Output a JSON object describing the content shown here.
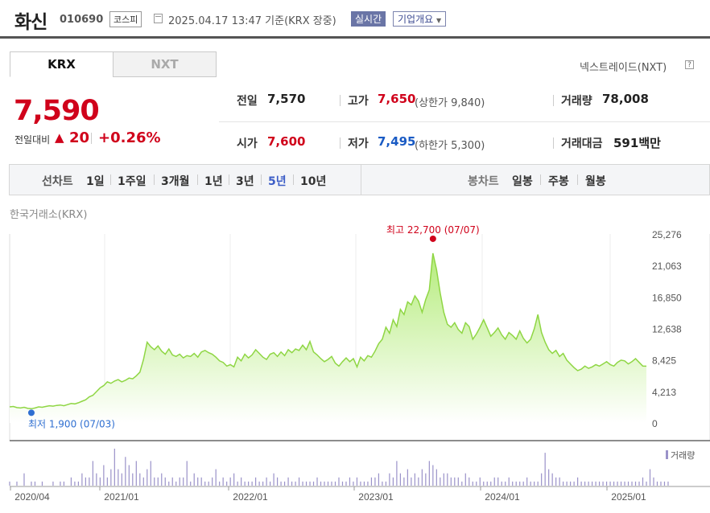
{
  "header": {
    "company": "화신",
    "code": "010690",
    "market": "코스피",
    "datetime": "2025.04.17 13:47 기준(KRX 장중)",
    "realtime_label": "실시간",
    "overview_label": "기업개요",
    "calendar_icon": "calendar-icon"
  },
  "tabs": [
    {
      "label": "KRX",
      "active": true
    },
    {
      "label": "NXT",
      "active": false
    }
  ],
  "nxt_link": "넥스트레이드(NXT)",
  "nxt_help": "?",
  "price": {
    "current": "7,590",
    "change_label": "전일대비",
    "change_arrow": "▲",
    "change_value": "20",
    "change_pct": "+0.26%"
  },
  "stats": {
    "prev_label": "전일",
    "prev": "7,570",
    "high_label": "고가",
    "high": "7,650",
    "upper_limit": "(상한가 9,840)",
    "volume_label": "거래량",
    "volume": "78,008",
    "open_label": "시가",
    "open": "7,600",
    "low_label": "저가",
    "low": "7,495",
    "lower_limit": "(하한가 5,300)",
    "amount_label": "거래대금",
    "amount": "591",
    "amount_unit": "백만"
  },
  "periods": {
    "line_label": "선차트",
    "line_items": [
      "1일",
      "1주일",
      "3개월",
      "1년",
      "3년",
      "5년",
      "10년"
    ],
    "line_active": "5년",
    "candle_label": "봉차트",
    "candle_items": [
      "일봉",
      "주봉",
      "월봉"
    ]
  },
  "chart_source": "한국거래소(KRX)",
  "chart_data": {
    "type": "area",
    "x_ticks": [
      "2020/04",
      "2021/01",
      "2022/01",
      "2023/01",
      "2024/01",
      "2025/01"
    ],
    "y_ticks": [
      25276,
      21063,
      16850,
      12638,
      8425,
      4213,
      0
    ],
    "ylim": [
      0,
      25276
    ],
    "max_label": "최고 22,700 (07/07)",
    "min_label": "최저 1,900 (07/03)",
    "volume_label": "거래량",
    "colors": {
      "line": "#8fd644",
      "fill_top": "#b5ec7c",
      "fill_bottom": "#ffffff",
      "max": "#d0021b",
      "min": "#2f6fd1",
      "volume": "#9a92c9"
    },
    "series": [
      {
        "values": [
          2150,
          2200,
          2050,
          2000,
          2100,
          1950,
          1900,
          2000,
          2150,
          2100,
          2200,
          2300,
          2250,
          2350,
          2400,
          2300,
          2450,
          2600,
          2550,
          2700,
          2900,
          3100,
          3500,
          3700,
          4200,
          4700,
          5000,
          5500,
          5300,
          5600,
          5800,
          5500,
          5700,
          6000,
          5900,
          6300,
          6800,
          8500,
          10800,
          10200,
          9800,
          10300,
          9600,
          9200,
          9900,
          9100,
          8900,
          9200,
          8700,
          9000,
          8900,
          9300,
          8800,
          9500,
          9700,
          9400,
          9200,
          8800,
          8300,
          8100,
          7600,
          7800,
          7500,
          8800,
          8300,
          9200,
          8700,
          9100,
          9800,
          9300,
          8800,
          8500,
          9200,
          9400,
          8900,
          9500,
          9000,
          9800,
          9400,
          9900,
          9700,
          10400,
          9800,
          10900,
          9500,
          9100,
          8600,
          8200,
          8500,
          8900,
          8000,
          7600,
          8200,
          8700,
          8200,
          8600,
          7500,
          8800,
          8300,
          9000,
          8800,
          9600,
          10600,
          11200,
          12800,
          12000,
          13800,
          12900,
          15200,
          14500,
          16200,
          15800,
          17000,
          16300,
          14800,
          16500,
          17800,
          22700,
          20500,
          17400,
          14800,
          13200,
          12800,
          13400,
          12500,
          12000,
          13400,
          12900,
          11200,
          11900,
          12800,
          13800,
          12700,
          11600,
          12100,
          12700,
          11800,
          11200,
          12100,
          11700,
          11200,
          12300,
          11300,
          10700,
          11200,
          12600,
          14500,
          12100,
          10800,
          9800,
          9300,
          9700,
          8900,
          9300,
          8400,
          7900,
          7400,
          7000,
          7200,
          7600,
          7300,
          7500,
          7800,
          7600,
          7900,
          8200,
          7800,
          7600,
          8100,
          8400,
          8300,
          7900,
          8200,
          8600,
          8100,
          7600,
          7590
        ]
      },
      {
        "name": "거래량",
        "values": [
          1,
          0,
          1,
          0,
          3,
          0,
          1,
          1,
          0,
          1,
          0,
          0,
          1,
          0,
          1,
          1,
          0,
          2,
          1,
          1,
          3,
          2,
          2,
          6,
          3,
          2,
          5,
          2,
          4,
          9,
          4,
          3,
          7,
          5,
          3,
          6,
          3,
          2,
          4,
          6,
          2,
          2,
          3,
          2,
          1,
          2,
          1,
          2,
          2,
          6,
          1,
          3,
          2,
          2,
          1,
          1,
          2,
          4,
          1,
          2,
          1,
          2,
          3,
          1,
          2,
          1,
          1,
          1,
          2,
          1,
          1,
          2,
          1,
          3,
          2,
          1,
          1,
          2,
          1,
          1,
          2,
          1,
          1,
          1,
          1,
          2,
          1,
          1,
          1,
          1,
          1,
          2,
          1,
          1,
          2,
          1,
          2,
          1,
          1,
          1,
          2,
          2,
          3,
          1,
          1,
          3,
          2,
          6,
          3,
          2,
          4,
          2,
          3,
          2,
          4,
          3,
          6,
          5,
          4,
          2,
          3,
          3,
          2,
          2,
          2,
          1,
          3,
          2,
          1,
          1,
          2,
          1,
          1,
          1,
          2,
          2,
          1,
          1,
          2,
          1,
          1,
          1,
          1,
          2,
          1,
          1,
          1,
          3,
          8,
          4,
          3,
          2,
          2,
          1,
          1,
          1,
          1,
          2,
          1,
          1,
          1,
          1,
          1,
          1,
          1,
          1,
          1,
          1,
          1,
          1,
          1,
          1,
          1,
          1,
          1,
          2,
          1,
          4,
          2,
          1,
          1,
          1,
          1
        ]
      }
    ]
  }
}
